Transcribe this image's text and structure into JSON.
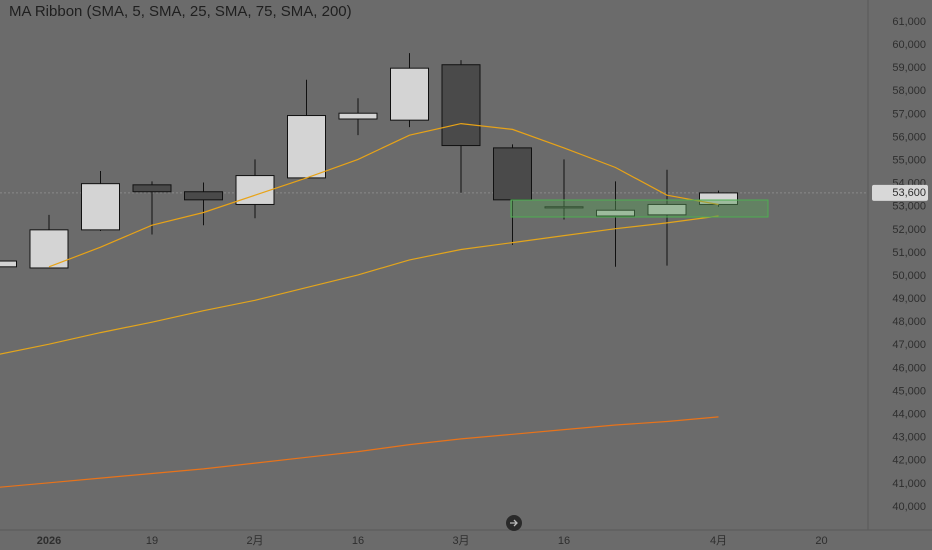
{
  "chart_data": {
    "type": "candlestick",
    "title": "MA Ribbon (SMA, 5, SMA, 25, SMA, 75, SMA, 200)",
    "categories": [
      null,
      "2026",
      null,
      "19",
      null,
      "2月",
      null,
      "16",
      null,
      "3月",
      null,
      "16",
      null,
      null,
      "4月",
      null,
      "20"
    ],
    "ohlc": {
      "open": [
        50400,
        50350,
        52000,
        53950,
        53650,
        53100,
        54250,
        56800,
        56750,
        59150,
        55550,
        52950,
        52600,
        52650,
        53100,
        null,
        null
      ],
      "high": [
        50700,
        52650,
        54550,
        54100,
        54050,
        55050,
        58500,
        57700,
        59650,
        59350,
        55700,
        55050,
        54100,
        54600,
        53700,
        null,
        null
      ],
      "low": [
        50350,
        50350,
        51950,
        51800,
        52200,
        52500,
        54250,
        56100,
        56450,
        53600,
        51350,
        52450,
        50400,
        50450,
        53000,
        null,
        null
      ],
      "close": [
        50650,
        52000,
        54000,
        53650,
        53300,
        54350,
        56950,
        57050,
        59000,
        55650,
        53300,
        53000,
        52850,
        53100,
        53600,
        null,
        null
      ],
      "up_color": "#d4d4d4",
      "down_color": "#4a4a4a"
    },
    "series": [
      {
        "name": "SMA 5",
        "color": "#e8a317",
        "values": [
          null,
          50400,
          51250,
          52200,
          52750,
          53500,
          54250,
          55050,
          56100,
          56600,
          56350,
          55550,
          54700,
          53500,
          53100,
          null,
          null
        ]
      },
      {
        "name": "SMA 25",
        "color": "#e3a51c",
        "values": [
          46600,
          47050,
          47550,
          48000,
          48500,
          48950,
          49500,
          50050,
          50700,
          51150,
          51450,
          51750,
          52050,
          52300,
          52600,
          null,
          null
        ]
      },
      {
        "name": "SMA 75",
        "color": "#e8731a",
        "values": [
          40850,
          41050,
          41250,
          41450,
          41650,
          41900,
          42150,
          42400,
          42700,
          42950,
          43150,
          43350,
          43550,
          43700,
          43900,
          null,
          null
        ]
      }
    ],
    "last_price": {
      "value": 53600,
      "label": "53,600"
    },
    "ylim": [
      39500,
      61500
    ],
    "yticks": [
      {
        "value": 40000,
        "label": "40,000"
      },
      {
        "value": 41000,
        "label": "41,000"
      },
      {
        "value": 42000,
        "label": "42,000"
      },
      {
        "value": 43000,
        "label": "43,000"
      },
      {
        "value": 44000,
        "label": "44,000"
      },
      {
        "value": 45000,
        "label": "45,000"
      },
      {
        "value": 46000,
        "label": "46,000"
      },
      {
        "value": 47000,
        "label": "47,000"
      },
      {
        "value": 48000,
        "label": "48,000"
      },
      {
        "value": 49000,
        "label": "49,000"
      },
      {
        "value": 50000,
        "label": "50,000"
      },
      {
        "value": 51000,
        "label": "51,000"
      },
      {
        "value": 52000,
        "label": "52,000"
      },
      {
        "value": 53000,
        "label": "53,000"
      },
      {
        "value": 54000,
        "label": "54,000"
      },
      {
        "value": 55000,
        "label": "55,000"
      },
      {
        "value": 56000,
        "label": "56,000"
      },
      {
        "value": 57000,
        "label": "57,000"
      },
      {
        "value": 58000,
        "label": "58,000"
      },
      {
        "value": 59000,
        "label": "59,000"
      },
      {
        "value": 60000,
        "label": "60,000"
      },
      {
        "value": 61000,
        "label": "61,000"
      }
    ]
  }
}
